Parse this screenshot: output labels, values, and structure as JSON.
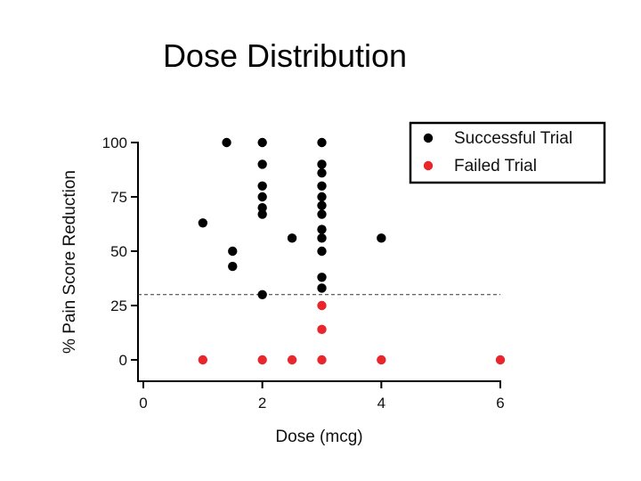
{
  "chart_data": {
    "type": "scatter",
    "title": "Dose Distribution",
    "xlabel": "Dose (mcg)",
    "ylabel": "% Pain Score Reduction",
    "xlim": [
      0,
      6
    ],
    "ylim": [
      0,
      100
    ],
    "xticks": [
      "0",
      "2",
      "4",
      "6"
    ],
    "yticks": [
      "0",
      "25",
      "50",
      "75",
      "100"
    ],
    "grid": false,
    "legend_position": "top-right",
    "threshold_line": {
      "y": 30,
      "style": "dashed"
    },
    "series": [
      {
        "name": "Successful Trial",
        "color": "#000000",
        "points": [
          [
            1,
            63
          ],
          [
            1.4,
            100
          ],
          [
            1.5,
            50
          ],
          [
            1.5,
            43
          ],
          [
            2,
            100
          ],
          [
            2,
            90
          ],
          [
            2,
            80
          ],
          [
            2,
            75
          ],
          [
            2,
            70
          ],
          [
            2,
            67
          ],
          [
            2,
            30
          ],
          [
            2.5,
            56
          ],
          [
            4,
            56
          ],
          [
            3,
            100
          ],
          [
            3,
            90
          ],
          [
            3,
            86
          ],
          [
            3,
            80
          ],
          [
            3,
            75
          ],
          [
            3,
            71
          ],
          [
            3,
            67
          ],
          [
            3,
            60
          ],
          [
            3,
            56
          ],
          [
            3,
            50
          ],
          [
            3,
            38
          ],
          [
            3,
            33
          ]
        ]
      },
      {
        "name": "Failed Trial",
        "color": "#e8262b",
        "points": [
          [
            1,
            0
          ],
          [
            2,
            0
          ],
          [
            2.5,
            0
          ],
          [
            3,
            0
          ],
          [
            4,
            0
          ],
          [
            6,
            0
          ],
          [
            3,
            25
          ],
          [
            3,
            14
          ]
        ]
      }
    ]
  }
}
